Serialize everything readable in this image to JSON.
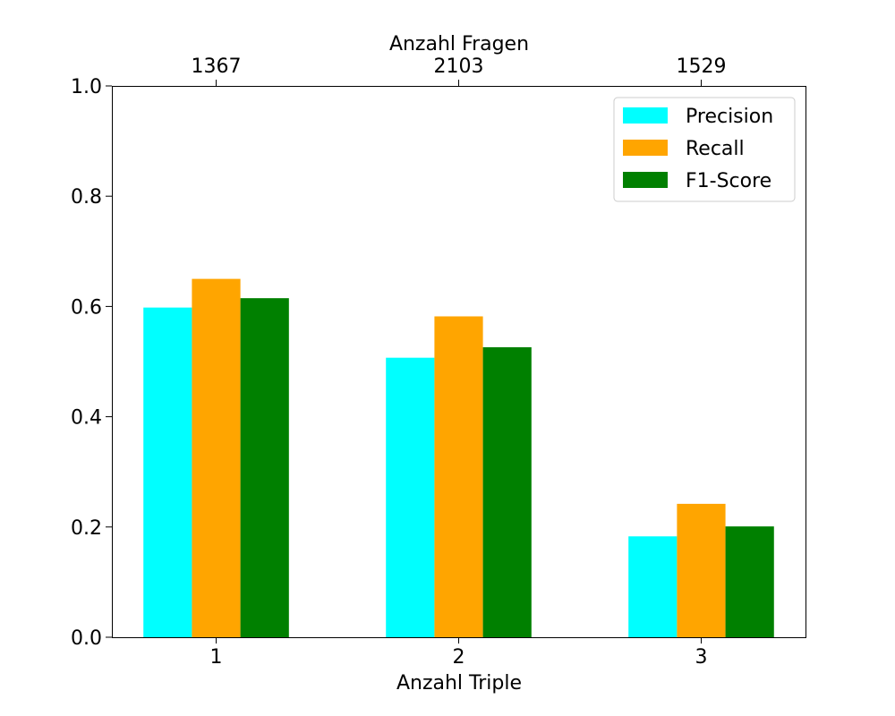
{
  "chart_data": {
    "type": "bar",
    "categories": [
      "1",
      "2",
      "3"
    ],
    "xlabel": "Anzahl Triple",
    "top_axis": {
      "label": "Anzahl Fragen",
      "tick_labels": [
        "1367",
        "2103",
        "1529"
      ]
    },
    "ylabel": "",
    "ylim": [
      0,
      1.0
    ],
    "yticks": [
      0.0,
      0.2,
      0.4,
      0.6,
      0.8,
      1.0
    ],
    "ytick_labels": [
      "0.0",
      "0.2",
      "0.4",
      "0.6",
      "0.8",
      "1.0"
    ],
    "grid": false,
    "legend_position": "top-right",
    "series": [
      {
        "name": "Precision",
        "color": "#00ffff",
        "values": [
          0.598,
          0.507,
          0.183
        ]
      },
      {
        "name": "Recall",
        "color": "#ffa500",
        "values": [
          0.65,
          0.582,
          0.242
        ]
      },
      {
        "name": "F1-Score",
        "color": "#008000",
        "values": [
          0.615,
          0.526,
          0.201
        ]
      }
    ]
  }
}
